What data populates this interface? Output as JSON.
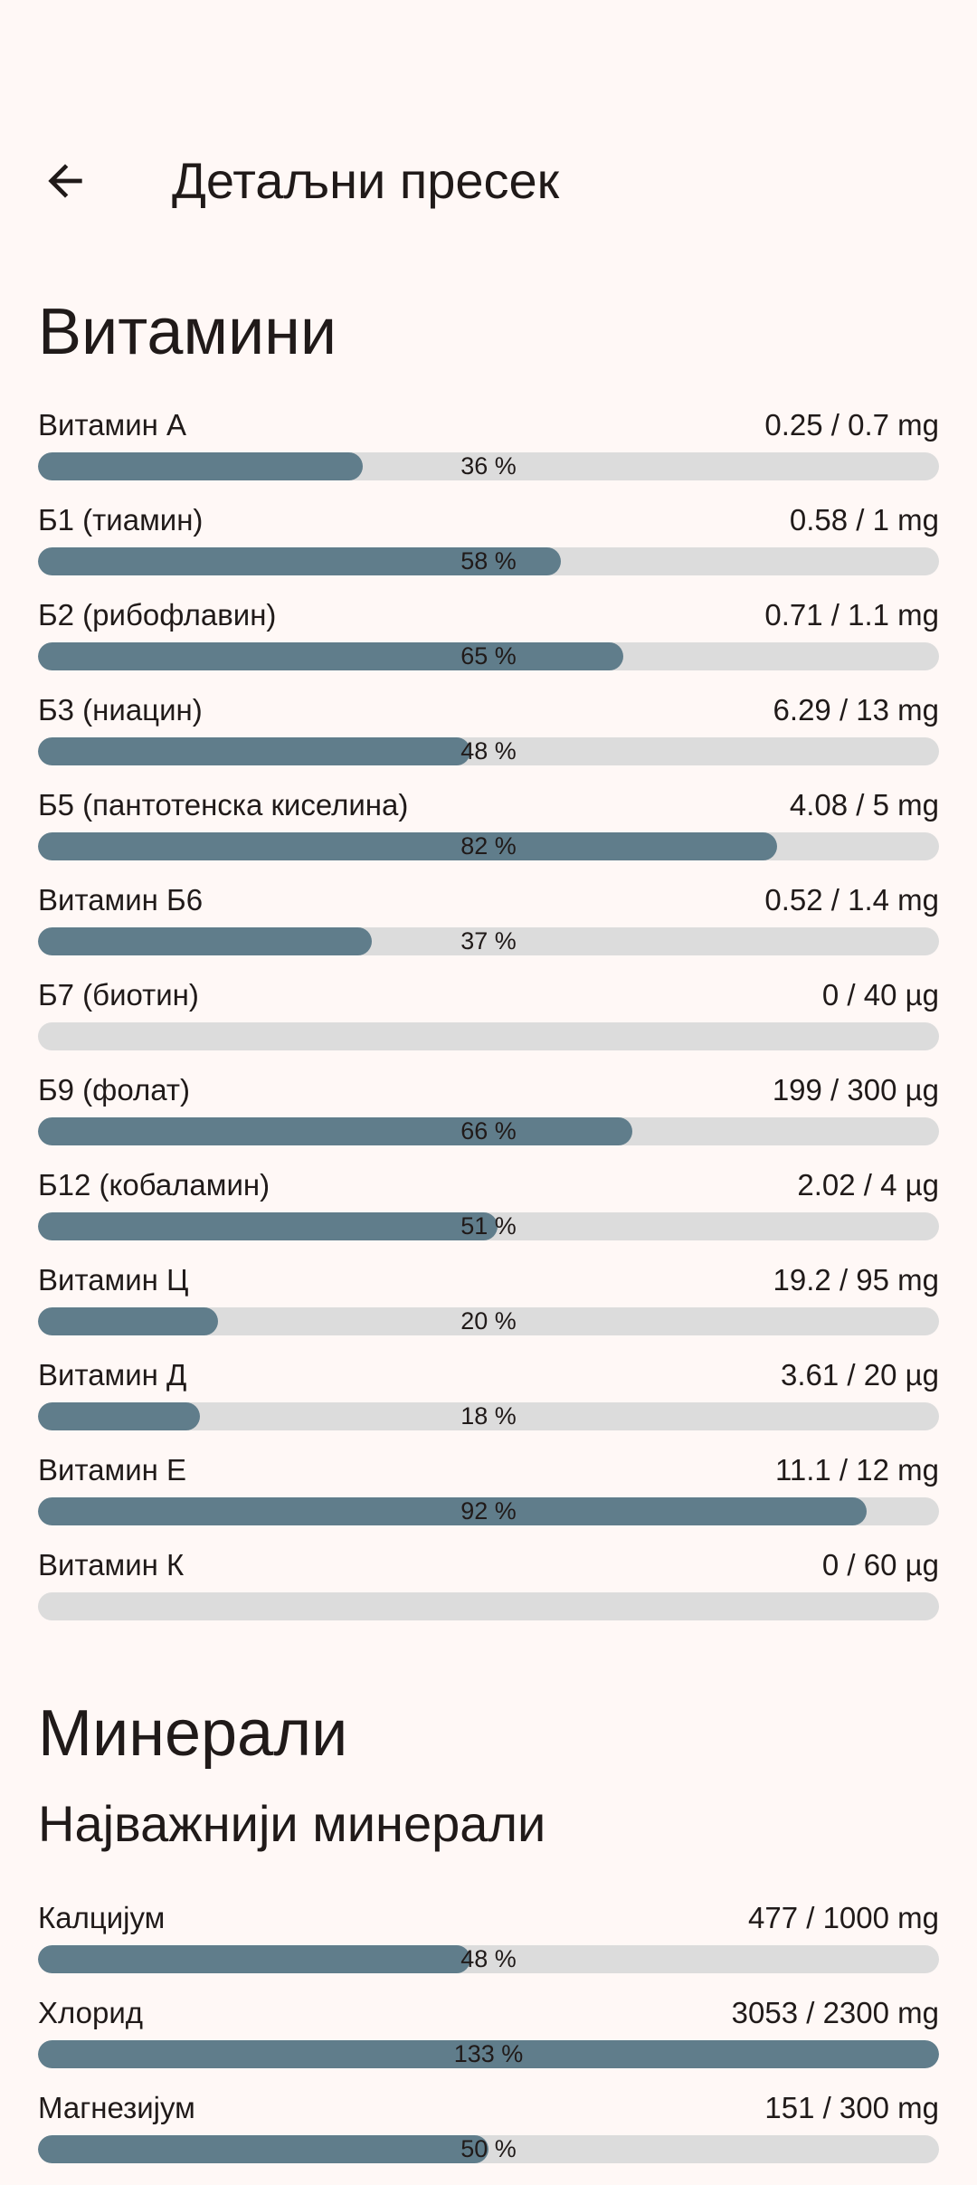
{
  "header": {
    "title": "Детаљни пресек",
    "back_icon": "arrow-back-icon"
  },
  "colors": {
    "background": "#fff8f6",
    "fill": "#607d8b",
    "track": "#dcdcdc",
    "text": "#201a19"
  },
  "vitamins": {
    "heading": "Витамини",
    "items": [
      {
        "name": "Витамин А",
        "value": "0.25 / 0.7 mg",
        "percent": 36,
        "percent_label": "36 %"
      },
      {
        "name": "Б1 (тиамин)",
        "value": "0.58 / 1 mg",
        "percent": 58,
        "percent_label": "58 %"
      },
      {
        "name": "Б2 (рибофлавин)",
        "value": "0.71 / 1.1 mg",
        "percent": 65,
        "percent_label": "65 %"
      },
      {
        "name": "Б3 (ниацин)",
        "value": "6.29 / 13 mg",
        "percent": 48,
        "percent_label": "48 %"
      },
      {
        "name": "Б5 (пантотенска киселина)",
        "value": "4.08 / 5 mg",
        "percent": 82,
        "percent_label": "82 %"
      },
      {
        "name": "Витамин Б6",
        "value": "0.52 / 1.4 mg",
        "percent": 37,
        "percent_label": "37 %"
      },
      {
        "name": "Б7 (биотин)",
        "value": "0 / 40 µg",
        "percent": 0,
        "percent_label": ""
      },
      {
        "name": "Б9 (фолат)",
        "value": "199 / 300 µg",
        "percent": 66,
        "percent_label": "66 %"
      },
      {
        "name": "Б12 (кобаламин)",
        "value": "2.02 / 4 µg",
        "percent": 51,
        "percent_label": "51 %"
      },
      {
        "name": "Витамин Ц",
        "value": "19.2 / 95 mg",
        "percent": 20,
        "percent_label": "20 %"
      },
      {
        "name": "Витамин Д",
        "value": "3.61 / 20 µg",
        "percent": 18,
        "percent_label": "18 %"
      },
      {
        "name": "Витамин Е",
        "value": "11.1 / 12 mg",
        "percent": 92,
        "percent_label": "92 %"
      },
      {
        "name": "Витамин К",
        "value": "0 / 60 µg",
        "percent": 0,
        "percent_label": ""
      }
    ]
  },
  "minerals": {
    "heading": "Минерали",
    "subheading": "Најважнији минерали",
    "items": [
      {
        "name": "Калцијум",
        "value": "477 / 1000 mg",
        "percent": 48,
        "percent_label": "48 %"
      },
      {
        "name": "Хлорид",
        "value": "3053 / 2300 mg",
        "percent": 133,
        "percent_label": "133 %"
      },
      {
        "name": "Магнезијум",
        "value": "151 / 300 mg",
        "percent": 50,
        "percent_label": "50 %"
      }
    ]
  }
}
